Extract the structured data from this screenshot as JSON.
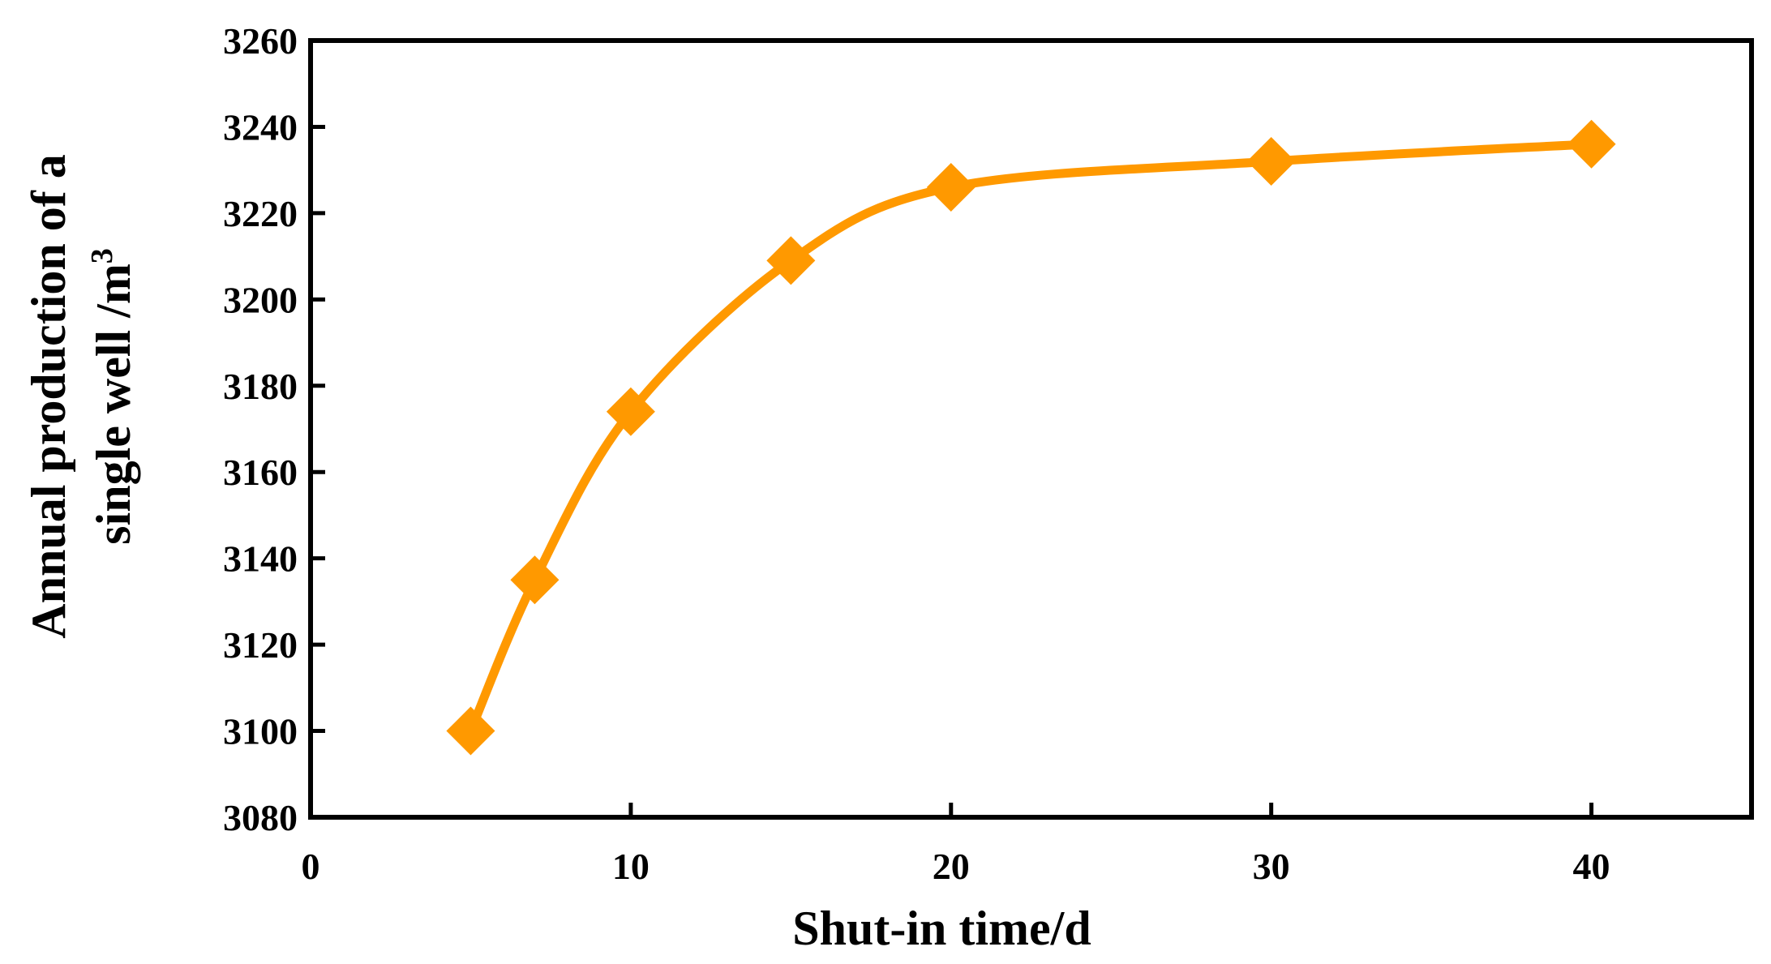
{
  "chart_data": {
    "type": "line",
    "title": "",
    "xlabel": "Shut-in time/d",
    "ylabel_line1": "Annual production of a",
    "ylabel_line2": "single well /m",
    "ylabel_superscript": "3",
    "xlim": [
      0,
      45
    ],
    "ylim": [
      3080,
      3260
    ],
    "x_ticks": [
      0,
      10,
      20,
      30,
      40
    ],
    "y_ticks": [
      3080,
      3100,
      3120,
      3140,
      3160,
      3180,
      3200,
      3220,
      3240,
      3260
    ],
    "grid": false,
    "legend": "none",
    "smooth": true,
    "marker": "diamond",
    "color": "#FF9900",
    "series": [
      {
        "x": [
          5,
          7,
          10,
          15,
          20,
          30,
          40
        ],
        "y": [
          3100,
          3135,
          3174,
          3209,
          3226,
          3232,
          3236
        ]
      }
    ]
  }
}
